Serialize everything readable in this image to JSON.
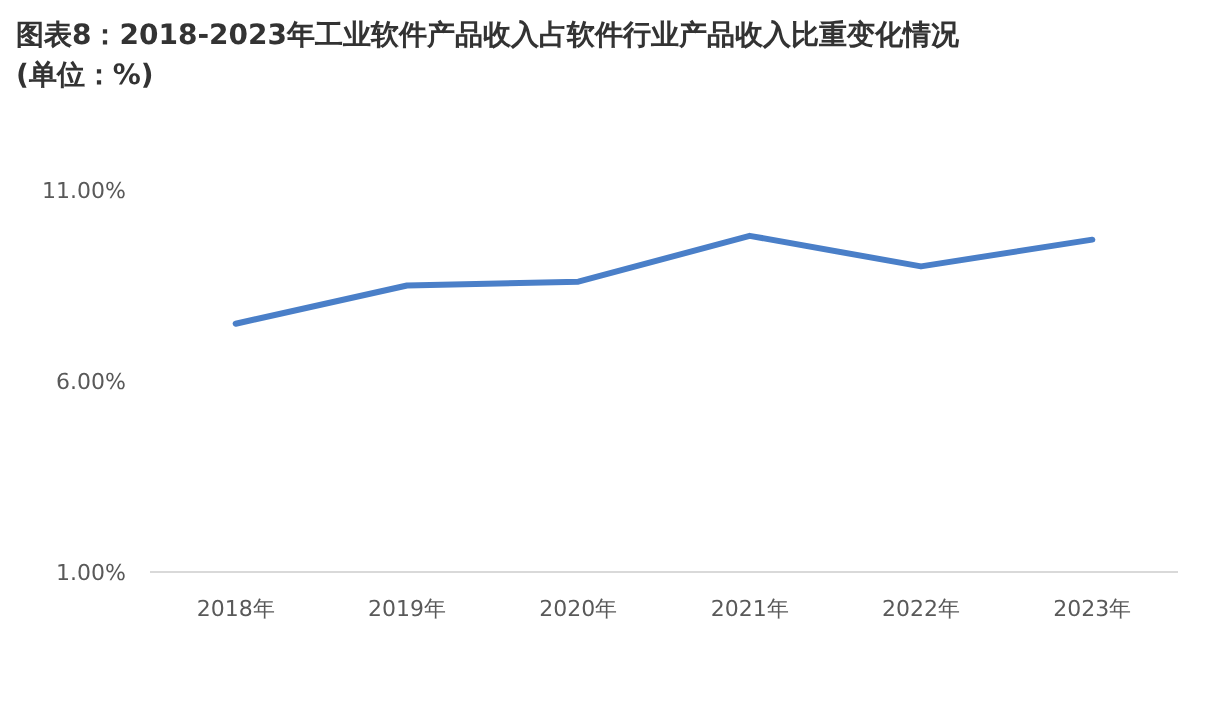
{
  "chart_data": {
    "type": "line",
    "title": "图表8：2018-2023年工业软件产品收入占软件行业产品收入比重变化情况(单位：%)",
    "categories": [
      "2018年",
      "2019年",
      "2020年",
      "2021年",
      "2022年",
      "2023年"
    ],
    "series": [
      {
        "color": "#4a7fc8",
        "values": [
          7.5,
          8.5,
          8.6,
          9.8,
          9.0,
          9.7
        ]
      }
    ],
    "ylim": [
      1,
      11
    ],
    "yticks": [
      {
        "value": 1,
        "label": "1.00%"
      },
      {
        "value": 6,
        "label": "6.00%"
      },
      {
        "value": 11,
        "label": "11.00%"
      }
    ],
    "line_style": "solid"
  }
}
